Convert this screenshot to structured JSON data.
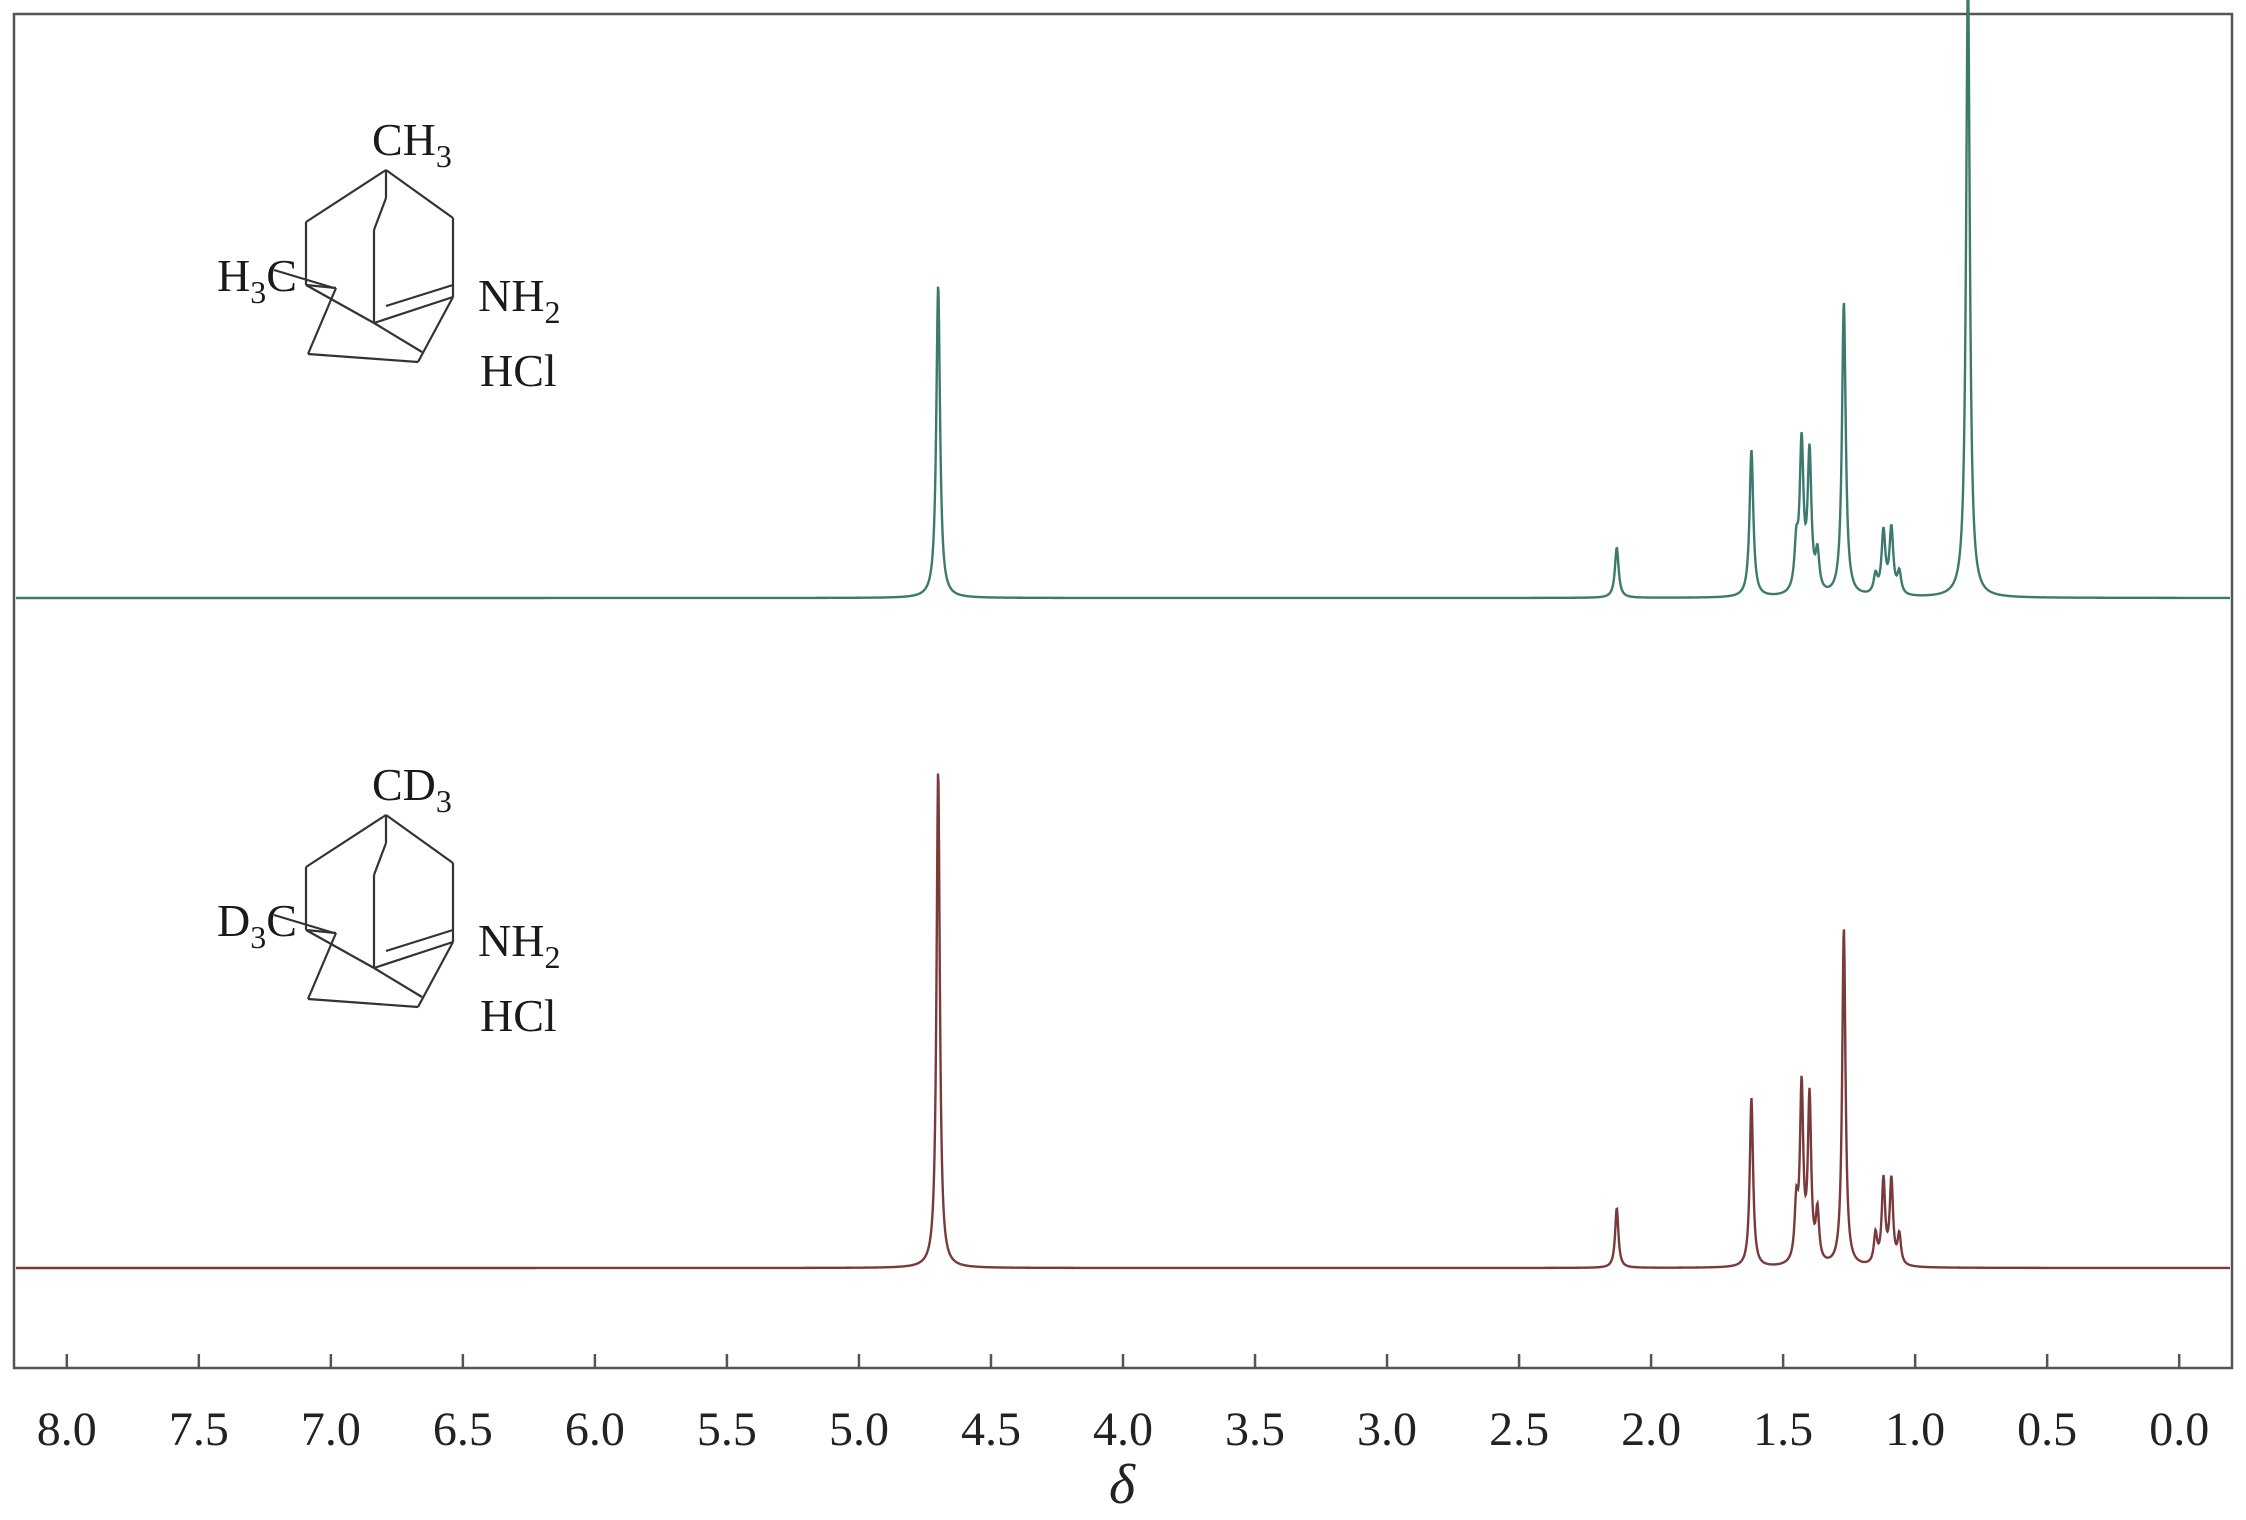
{
  "chart_data": {
    "type": "line",
    "xlabel": "δ",
    "xlim": [
      8.2,
      -0.2
    ],
    "x_ticks": [
      "8.0",
      "7.5",
      "7.0",
      "6.5",
      "6.0",
      "5.5",
      "5.0",
      "4.5",
      "4.0",
      "3.5",
      "3.0",
      "2.5",
      "2.0",
      "1.5",
      "1.0",
      "0.5",
      "0.0"
    ],
    "grid": false,
    "series": [
      {
        "color": "#3d7a6e",
        "molecule": {
          "top_group": "CH",
          "top_sub": "3",
          "left_group_pre": "H",
          "left_sub": "3",
          "left_group_post": "C",
          "amine": "NH",
          "amine_sub": "2",
          "salt": "HCl"
        },
        "peaks": [
          {
            "x": 4.7,
            "height": 1.0
          },
          {
            "x": 2.13,
            "height": 0.16
          },
          {
            "x": 1.62,
            "height": 0.47
          },
          {
            "x": 1.45,
            "height": 0.14
          },
          {
            "x": 1.43,
            "height": 0.47
          },
          {
            "x": 1.4,
            "height": 0.44
          },
          {
            "x": 1.37,
            "height": 0.12
          },
          {
            "x": 1.27,
            "height": 0.94
          },
          {
            "x": 1.15,
            "height": 0.06
          },
          {
            "x": 1.12,
            "height": 0.2
          },
          {
            "x": 1.09,
            "height": 0.21
          },
          {
            "x": 1.06,
            "height": 0.07
          },
          {
            "x": 0.8,
            "height": 1.99
          }
        ]
      },
      {
        "color": "#7a3a3a",
        "molecule": {
          "top_group": "CD",
          "top_sub": "3",
          "left_group_pre": "D",
          "left_sub": "3",
          "left_group_post": "C",
          "amine": "NH",
          "amine_sub": "2",
          "salt": "HCl"
        },
        "peaks": [
          {
            "x": 4.7,
            "height": 1.0
          },
          {
            "x": 2.13,
            "height": 0.12
          },
          {
            "x": 1.62,
            "height": 0.34
          },
          {
            "x": 1.45,
            "height": 0.11
          },
          {
            "x": 1.43,
            "height": 0.35
          },
          {
            "x": 1.4,
            "height": 0.33
          },
          {
            "x": 1.37,
            "height": 0.1
          },
          {
            "x": 1.27,
            "height": 0.68
          },
          {
            "x": 1.15,
            "height": 0.06
          },
          {
            "x": 1.12,
            "height": 0.17
          },
          {
            "x": 1.09,
            "height": 0.17
          },
          {
            "x": 1.06,
            "height": 0.06
          }
        ]
      }
    ]
  }
}
